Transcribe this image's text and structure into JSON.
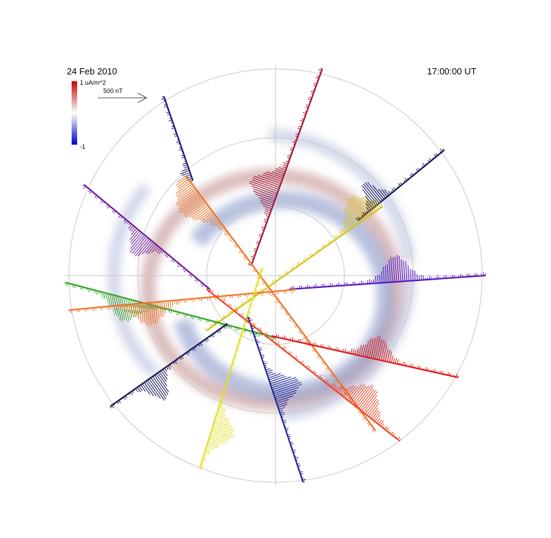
{
  "header": {
    "date": "24 Feb 2010",
    "time": "17:00:00 UT"
  },
  "colorbar": {
    "max_label": "1 uA/m^2",
    "min_label": "-1"
  },
  "vector_scale": {
    "label": "500 nT"
  }
}
